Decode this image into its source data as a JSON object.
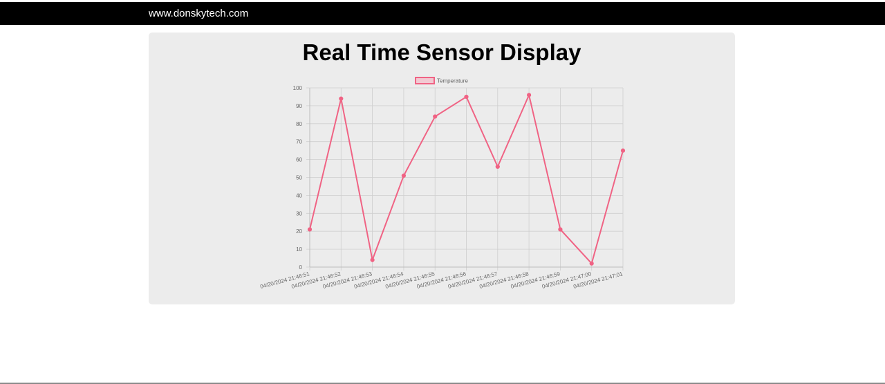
{
  "navbar": {
    "brand": "www.donskytech.com"
  },
  "page": {
    "title": "Real Time Sensor Display"
  },
  "colors": {
    "navbar_bg": "#000000",
    "card_bg": "#ececec",
    "series_line": "#f06384",
    "series_fill": "#f2c9d2",
    "grid": "#cfcfcf",
    "tick_text": "#666666"
  },
  "chart_data": {
    "type": "line",
    "title": "",
    "xlabel": "",
    "ylabel": "",
    "ylim": [
      0,
      100
    ],
    "y_ticks": [
      0,
      10,
      20,
      30,
      40,
      50,
      60,
      70,
      80,
      90,
      100
    ],
    "grid": true,
    "legend_position": "top",
    "categories": [
      "04/20/2024 21:46:51",
      "04/20/2024 21:46:52",
      "04/20/2024 21:46:53",
      "04/20/2024 21:46:54",
      "04/20/2024 21:46:55",
      "04/20/2024 21:46:56",
      "04/20/2024 21:46:57",
      "04/20/2024 21:46:58",
      "04/20/2024 21:46:59",
      "04/20/2024 21:47:00",
      "04/20/2024 21:47:01"
    ],
    "series": [
      {
        "name": "Temperature",
        "values": [
          21,
          94,
          4,
          51,
          84,
          95,
          56,
          96,
          21,
          2,
          65
        ]
      }
    ]
  }
}
